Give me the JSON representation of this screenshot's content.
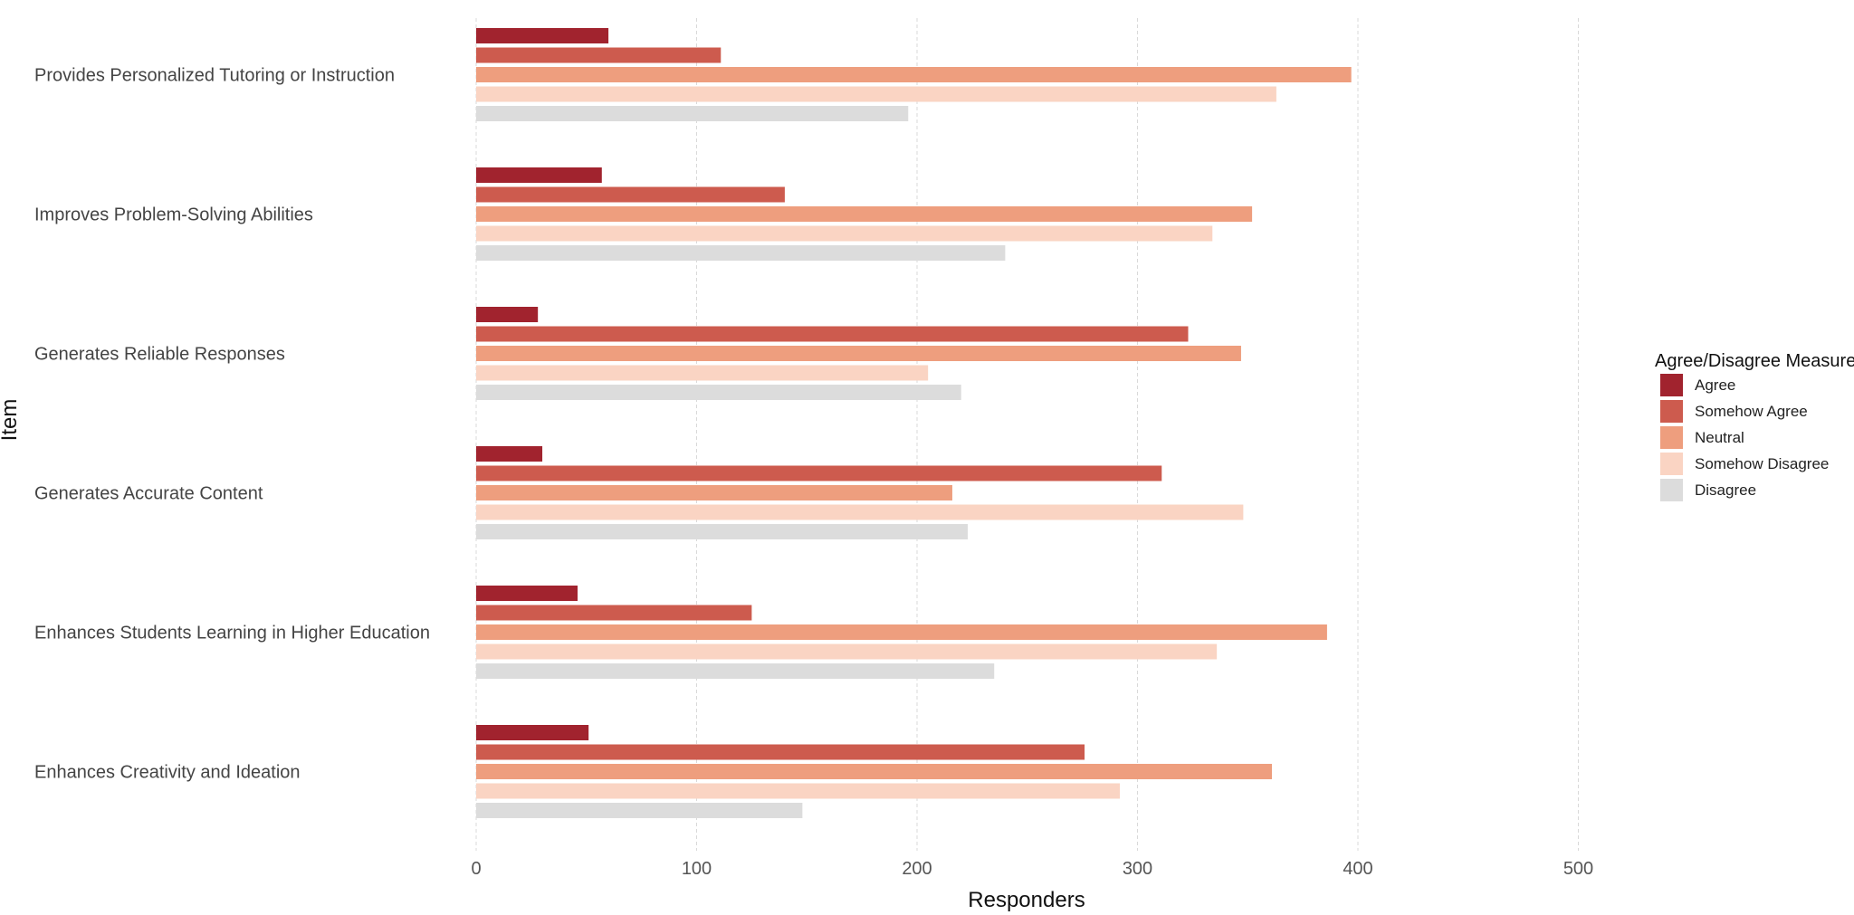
{
  "chart_data": {
    "type": "bar",
    "orientation": "horizontal",
    "xlabel": "Responders",
    "ylabel": "Item",
    "xlim": [
      0,
      500
    ],
    "xticks": [
      0,
      100,
      200,
      300,
      400,
      500
    ],
    "grid": "vertical dashed",
    "legend_title": "Agree/Disagree Measure",
    "legend_position": "right",
    "categories": [
      "Provides Personalized Tutoring or Instruction",
      "Improves Problem-Solving Abilities",
      "Generates Reliable Responses",
      "Generates Accurate Content",
      "Enhances Students Learning in Higher Education",
      "Enhances Creativity and Ideation"
    ],
    "series": [
      {
        "name": "Agree",
        "color": "#A1232E",
        "values": [
          60,
          57,
          28,
          30,
          46,
          51
        ]
      },
      {
        "name": "Somehow Agree",
        "color": "#CD5B4E",
        "values": [
          111,
          140,
          323,
          311,
          125,
          276
        ]
      },
      {
        "name": "Neutral",
        "color": "#EE9E7E",
        "values": [
          397,
          352,
          347,
          216,
          386,
          361
        ]
      },
      {
        "name": "Somehow Disagree",
        "color": "#FAD4C3",
        "values": [
          363,
          334,
          205,
          348,
          336,
          292
        ]
      },
      {
        "name": "Disagree",
        "color": "#DCDCDC",
        "values": [
          196,
          240,
          220,
          223,
          235,
          148
        ]
      }
    ]
  }
}
